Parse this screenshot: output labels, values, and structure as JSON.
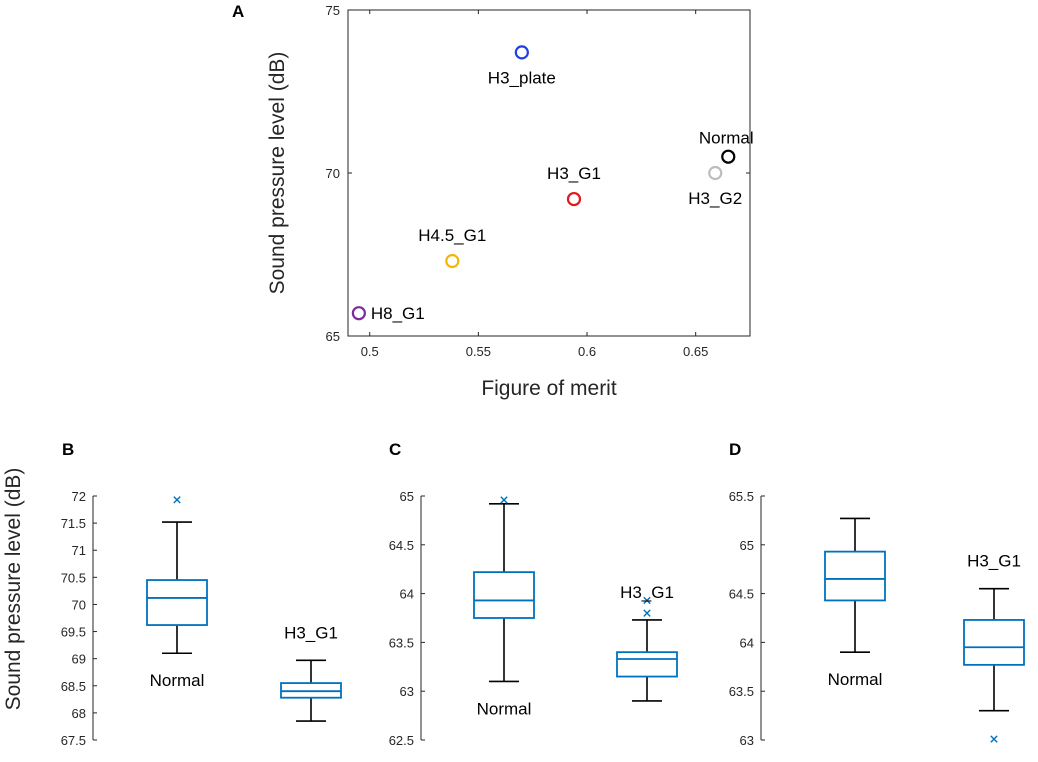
{
  "chart_data": [
    {
      "panel": "A",
      "type": "scatter",
      "xlabel": "Figure of merit",
      "ylabel": "Sound pressure level (dB)",
      "xlim": [
        0.49,
        0.675
      ],
      "ylim": [
        65,
        75
      ],
      "xticks": [
        "0.5",
        "0.55",
        "0.6",
        "0.65"
      ],
      "yticks": [
        "65",
        "70",
        "75"
      ],
      "points": [
        {
          "name": "H3_plate",
          "x": 0.57,
          "y": 73.7,
          "color": "#1f3fe0",
          "label_pos": "below"
        },
        {
          "name": "Normal",
          "x": 0.665,
          "y": 70.5,
          "color": "#000000",
          "label_pos": "above-left"
        },
        {
          "name": "H3_G2",
          "x": 0.659,
          "y": 70.0,
          "color": "#bdbdbd",
          "label_pos": "below"
        },
        {
          "name": "H3_G1",
          "x": 0.594,
          "y": 69.2,
          "color": "#e31a1c",
          "label_pos": "above"
        },
        {
          "name": "H4.5_G1",
          "x": 0.538,
          "y": 67.3,
          "color": "#f2b705",
          "label_pos": "above"
        },
        {
          "name": "H8_G1",
          "x": 0.495,
          "y": 65.7,
          "color": "#7b2c9e",
          "label_pos": "right"
        }
      ]
    },
    {
      "panel": "B",
      "type": "box",
      "ylabel": "Sound pressure level (dB)",
      "ylim": [
        67.5,
        72
      ],
      "yticks": [
        "67.5",
        "68",
        "68.5",
        "69",
        "69.5",
        "70",
        "70.5",
        "71",
        "71.5",
        "72"
      ],
      "boxes": [
        {
          "name": "Normal",
          "min": 69.1,
          "q1": 69.62,
          "median": 70.12,
          "q3": 70.45,
          "max": 71.52,
          "outliers": [
            71.93
          ],
          "label_pos": "below"
        },
        {
          "name": "H3_G1",
          "min": 67.85,
          "q1": 68.28,
          "median": 68.4,
          "q3": 68.55,
          "max": 68.97,
          "outliers": [],
          "label_pos": "above"
        }
      ]
    },
    {
      "panel": "C",
      "type": "box",
      "ylim": [
        62.5,
        65
      ],
      "yticks": [
        "62.5",
        "63",
        "63.5",
        "64",
        "64.5",
        "65"
      ],
      "boxes": [
        {
          "name": "Normal",
          "min": 63.1,
          "q1": 63.75,
          "median": 63.93,
          "q3": 64.22,
          "max": 64.92,
          "outliers": [
            64.96
          ],
          "label_pos": "below"
        },
        {
          "name": "H3_G1",
          "min": 62.9,
          "q1": 63.15,
          "median": 63.33,
          "q3": 63.4,
          "max": 63.73,
          "outliers": [
            63.8,
            63.93
          ],
          "label_pos": "above"
        }
      ]
    },
    {
      "panel": "D",
      "type": "box",
      "ylim": [
        63,
        65.5
      ],
      "yticks": [
        "63",
        "63.5",
        "64",
        "64.5",
        "65",
        "65.5"
      ],
      "boxes": [
        {
          "name": "Normal",
          "min": 63.9,
          "q1": 64.43,
          "median": 64.65,
          "q3": 64.93,
          "max": 65.27,
          "outliers": [],
          "label_pos": "below"
        },
        {
          "name": "H3_G1",
          "min": 63.3,
          "q1": 63.77,
          "median": 63.95,
          "q3": 64.23,
          "max": 64.55,
          "outliers": [
            63.01
          ],
          "label_pos": "above"
        }
      ]
    }
  ],
  "colors": {
    "axis": "#262626",
    "box": "#0072bd",
    "whisker": "#000000"
  }
}
